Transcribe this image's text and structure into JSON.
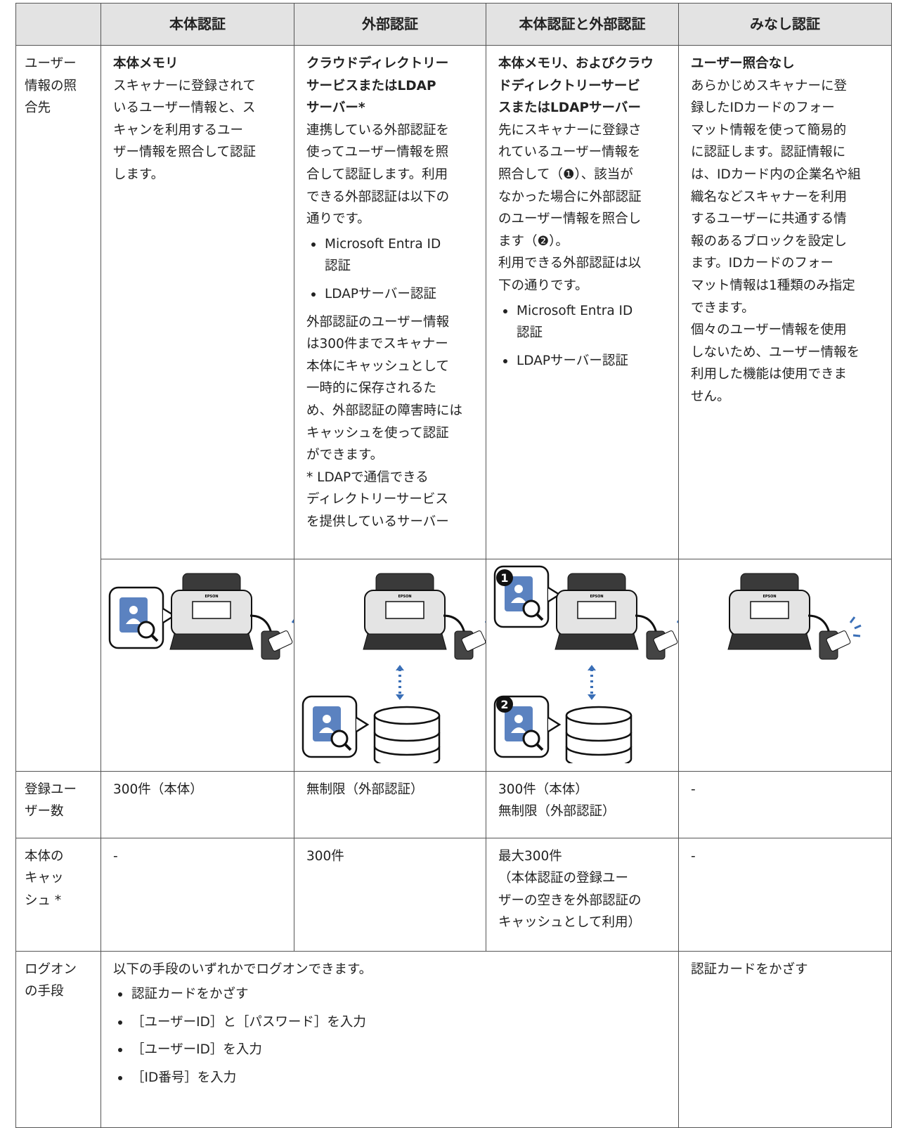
{
  "header": {
    "columns": [
      "本体認証",
      "外部認証",
      "本体認証と外部認証",
      "みなし認証"
    ]
  },
  "rows": [
    {
      "label": [
        "ユーザー",
        "情報の照",
        "合先"
      ],
      "cells": [
        {
          "heading": [
            "本体メモリ"
          ],
          "body": [
            "スキャナーに登録されて",
            "いるユーザー情報と、ス",
            "キャンを利用するユー",
            "ザー情報を照合して認証",
            "します。"
          ]
        },
        {
          "heading": [
            "クラウドディレクトリー",
            "サービスまたはLDAP",
            "サーバー*"
          ],
          "body": [
            "連携している外部認証を",
            "使ってユーザー情報を照",
            "合して認証します。利用",
            "できる外部認証は以下の",
            "通りです。"
          ],
          "bullets": [
            [
              "Microsoft Entra ID",
              "認証"
            ],
            [
              "LDAPサーバー認証"
            ]
          ],
          "after": [
            "外部認証のユーザー情報",
            "は300件までスキャナー",
            "本体にキャッシュとして",
            "一時的に保存されるた",
            "め、外部認証の障害時には",
            "キャッシュを使って認証",
            "ができます。"
          ],
          "note": [
            "* LDAPで通信できる",
            "ディレクトリーサービス",
            "を提供しているサーバー"
          ]
        },
        {
          "heading": [
            "本体メモリ、およびクラウ",
            "ドディレクトリーサービ",
            "スまたはLDAPサーバー"
          ],
          "body": [
            "先にスキャナーに登録さ",
            "れているユーザー情報を",
            "照合して（❶）、該当が",
            "なかった場合に外部認証",
            "のユーザー情報を照合し",
            "ます（❷）。",
            "利用できる外部認証は以",
            "下の通りです。"
          ],
          "bullets": [
            [
              "Microsoft Entra ID",
              "認証"
            ],
            [
              "LDAPサーバー認証"
            ]
          ]
        },
        {
          "heading": [
            "ユーザー照合なし"
          ],
          "body": [
            "あらかじめスキャナーに登",
            "録したIDカードのフォー",
            "マット情報を使って簡易的",
            "に認証します。認証情報に",
            "は、IDカード内の企業名や組",
            "織名などスキャナーを利用",
            "するユーザーに共通する情",
            "報のあるブロックを設定し",
            "ます。IDカードのフォー",
            "マット情報は1種類のみ指定",
            "できます。",
            "個々のユーザー情報を使用",
            "しないため、ユーザー情報を",
            "利用した機能は使用できま",
            "せん。"
          ]
        }
      ]
    },
    {
      "label": [
        "登録ユー",
        "ザー数"
      ],
      "cells": [
        {
          "body": [
            "300件（本体）"
          ]
        },
        {
          "body": [
            "無制限（外部認証）"
          ]
        },
        {
          "body": [
            "300件（本体）",
            "無制限（外部認証）"
          ]
        },
        {
          "body": [
            "-"
          ]
        }
      ]
    },
    {
      "label": [
        "本体の",
        "キャッ",
        "シュ *"
      ],
      "cells": [
        {
          "body": [
            "-"
          ]
        },
        {
          "body": [
            "300件"
          ]
        },
        {
          "body": [
            "最大300件",
            "（本体認証の登録ユー",
            "ザーの空きを外部認証の",
            "キャッシュとして利用）"
          ]
        },
        {
          "body": [
            "-"
          ]
        }
      ]
    },
    {
      "label": [
        "ログオン",
        "の手段"
      ],
      "cells": [
        {
          "body": [
            "以下の手段のいずれかでログオンできます。"
          ],
          "bullets": [
            [
              "認証カードをかざす"
            ],
            [
              "［ユーザーID］と［パスワード］を入力"
            ],
            [
              "［ユーザーID］を入力"
            ],
            [
              "［ID番号］を入力"
            ]
          ]
        },
        {
          "body": [
            "認証カードをかざす"
          ]
        }
      ]
    }
  ],
  "illustration": {
    "brand": "EPSON",
    "markers": [
      "1",
      "2"
    ]
  }
}
